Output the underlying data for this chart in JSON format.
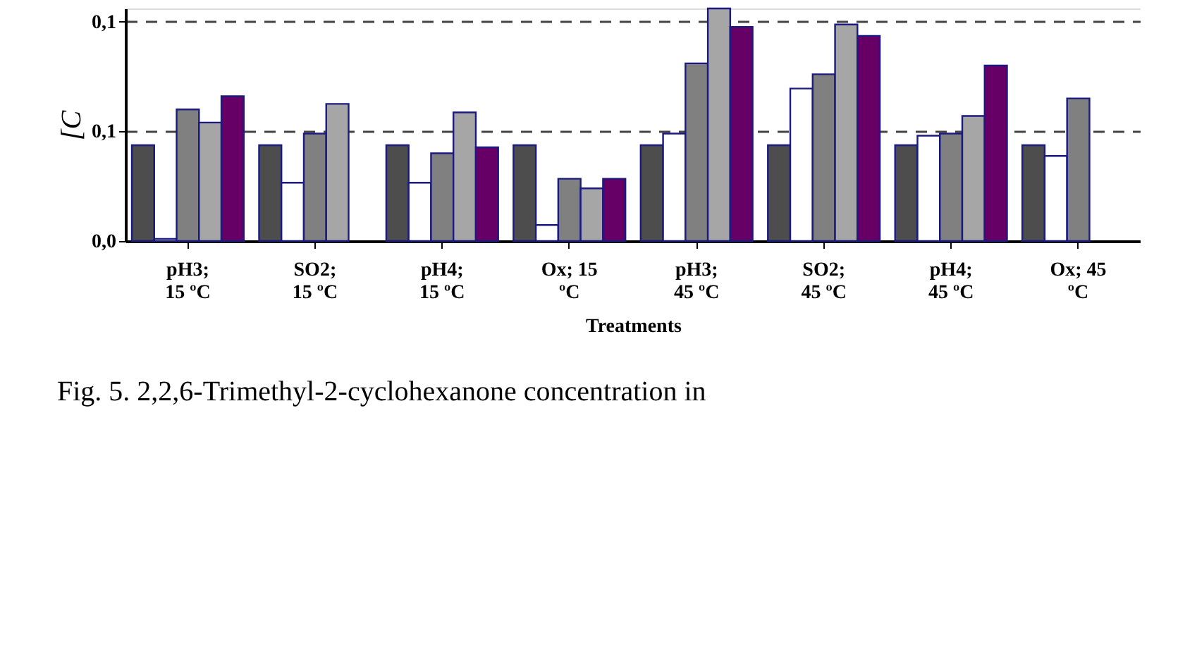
{
  "chart_data": {
    "type": "bar",
    "ylabel": "[C",
    "xlabel": "Treatments",
    "annotations": [
      "Fig. 5. 2,2,6-Trimethyl-2-cyclohexanone concentration in"
    ],
    "categories": [
      "pH3;\n15 ºC",
      "SO2;\n15 ºC",
      "pH4;\n15 ºC",
      "Ox; 15\nºC",
      "pH3;\n45 ºC",
      "SO2;\n45 ºC",
      "pH4;\n45 ºC",
      "Ox; 45\nºC"
    ],
    "series": [
      {
        "color": "#4d4d4d",
        "values": [
          0.0437,
          0.0437,
          0.0437,
          0.0437,
          0.0437,
          0.0437,
          0.0437,
          0.0437
        ]
      },
      {
        "color": "#ffffff",
        "values": [
          0.001,
          0.0266,
          0.0266,
          0.0073,
          0.049,
          0.0695,
          0.048,
          0.0388
        ]
      },
      {
        "color": "#808080",
        "values": [
          0.06,
          0.049,
          0.04,
          0.0284,
          0.081,
          0.076,
          0.049,
          0.065
        ]
      },
      {
        "color": "#a6a6a6",
        "values": [
          0.054,
          0.0625,
          0.0586,
          0.024,
          0.106,
          0.0987,
          0.057,
          null
        ]
      },
      {
        "color": "#660066",
        "values": [
          0.066,
          null,
          0.0427,
          0.0284,
          0.0976,
          0.0935,
          0.08,
          null
        ]
      }
    ],
    "ylim": [
      0,
      0.106
    ],
    "yticks": [
      {
        "value": 0,
        "label": "0,0"
      },
      {
        "value": 0.05,
        "label": "0,1"
      },
      {
        "value": 0.1,
        "label": "0,1"
      }
    ],
    "grid": "y",
    "legend": false
  }
}
